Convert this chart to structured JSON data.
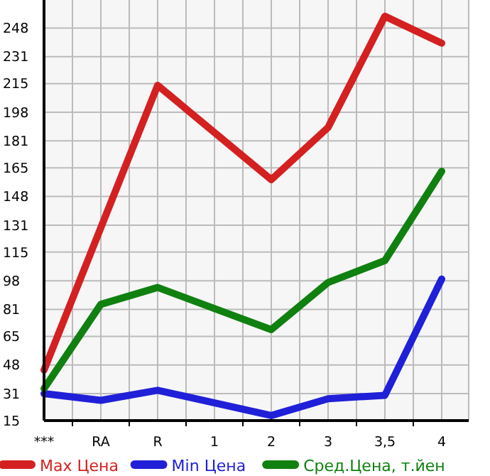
{
  "chart_data": {
    "type": "line",
    "categories": [
      "***",
      "RA",
      "R",
      "1",
      "2",
      "3",
      "3,5",
      "4"
    ],
    "ylim": [
      15,
      264.64
    ],
    "yticks": [
      15,
      31,
      48,
      65,
      81,
      98,
      115,
      131,
      148,
      165,
      181,
      198,
      215,
      231,
      248
    ],
    "grid": true,
    "legend": "bottom",
    "marker": "none",
    "line_style": "solid",
    "series": [
      {
        "name": "Max Цена",
        "color": "#d42020",
        "values": [
          45,
          null,
          214,
          null,
          158,
          189,
          255,
          239
        ]
      },
      {
        "name": "Min Цена",
        "color": "#2020d8",
        "values": [
          31,
          27,
          33,
          null,
          18,
          28,
          30,
          99
        ]
      },
      {
        "name": "Сред.Цена, т.йен",
        "color": "#108010",
        "values": [
          34,
          84,
          94,
          null,
          69,
          97,
          110,
          163
        ]
      }
    ]
  }
}
